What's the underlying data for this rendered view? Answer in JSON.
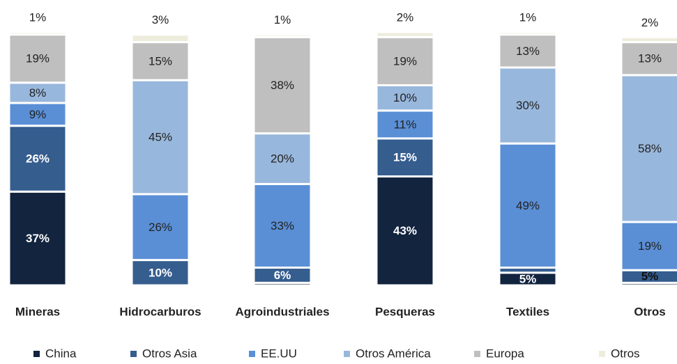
{
  "chart_data": {
    "type": "stacked_bar",
    "categories": [
      "Mineras",
      "Hidrocarburos",
      "Agroindustriales",
      "Pesqueras",
      "Textiles",
      "Otros"
    ],
    "ylim": [
      0,
      100
    ],
    "legend": "bottom",
    "series": [
      {
        "name": "China",
        "color": "#13243f",
        "values": [
          37,
          0,
          1,
          43,
          5,
          1
        ],
        "value_labels": [
          "37%",
          null,
          null,
          "43%",
          "5%",
          null
        ]
      },
      {
        "name": "Otros Asia",
        "color": "#355d8e",
        "values": [
          26,
          10,
          6,
          15,
          2,
          5
        ],
        "value_labels": [
          "26%",
          "10%",
          "6%",
          "15%",
          null,
          "5%"
        ]
      },
      {
        "name": "EE.UU",
        "color": "#5a8fd6",
        "values": [
          9,
          26,
          33,
          11,
          49,
          19
        ],
        "value_labels": [
          "9%",
          "26%",
          "33%",
          "11%",
          "49%",
          "19%"
        ]
      },
      {
        "name": "Otros América",
        "color": "#98b7dc",
        "values": [
          8,
          45,
          20,
          10,
          30,
          58
        ],
        "value_labels": [
          "8%",
          "45%",
          "20%",
          "10%",
          "30%",
          "58%"
        ]
      },
      {
        "name": "Europa",
        "color": "#bfbfbf",
        "values": [
          19,
          15,
          38,
          19,
          13,
          13
        ],
        "value_labels": [
          "19%",
          "15%",
          "38%",
          "19%",
          "13%",
          "13%"
        ]
      },
      {
        "name": "Otros",
        "color": "#eeeddd",
        "values": [
          1,
          3,
          1,
          2,
          1,
          2
        ],
        "value_labels": [
          "1%",
          "3%",
          "1%",
          "2%",
          "1%",
          "2%"
        ]
      }
    ]
  }
}
